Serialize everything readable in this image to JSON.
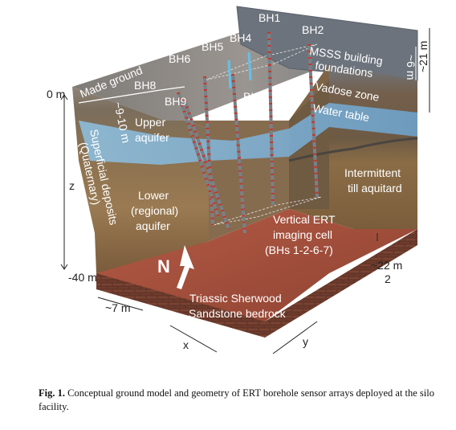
{
  "figure": {
    "labels": {
      "bh1": "BH1",
      "bh2": "BH2",
      "bh4": "BH4",
      "bh5": "BH5",
      "bh6": "BH6",
      "bh7": "BH7",
      "bh8": "BH8",
      "bh9": "BH9",
      "made_ground": "Made ground",
      "mss_building": "MSSS building",
      "foundations": "foundations",
      "vadose_zone": "Vadose zone",
      "water_table": "Water table",
      "upper_aquifer_1": "Upper",
      "upper_aquifer_2": "aquifer",
      "intermittent_1": "Intermittent",
      "intermittent_2": "till aquitard",
      "lower_1": "Lower",
      "lower_2": "(regional)",
      "lower_3": "aquifer",
      "superficial_1": "Superficial deposits",
      "superficial_2": "(Quaternary)",
      "vertical_ert_1": "Vertical ERT",
      "vertical_ert_2": "imaging cell",
      "vertical_ert_3": "(BHs 1-2-6-7)",
      "bedrock_1": "Triassic Sherwood",
      "bedrock_2": "Sandstone bedrock",
      "north": "N",
      "depth_0": "0 m",
      "depth_40": "-40 m",
      "z_axis": "z",
      "x_axis": "x",
      "y_axis": "y",
      "dim_9_10": "~9-10 m",
      "dim_6": "~6 m",
      "dim_21": "~21 m",
      "dim_22": "~22 m",
      "dim_22_sub": "2",
      "dim_7": "~7 m"
    },
    "colors": {
      "top_surface": "#8a8f95",
      "front_soil": "#7a5a3c",
      "water": "#7fb3d8",
      "bedrock": "#a4503d",
      "electrode": "#c0392b"
    }
  },
  "caption": {
    "label": "Fig. 1.",
    "text": " Conceptual ground model and geometry of ERT borehole sensor arrays deployed at the silo facility."
  }
}
